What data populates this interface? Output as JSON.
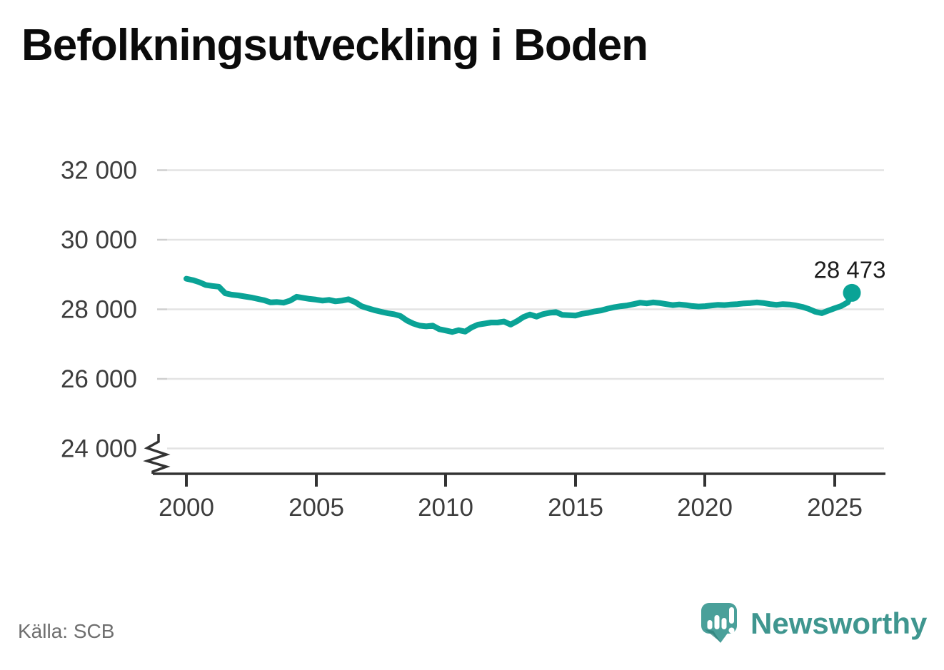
{
  "title": "Befolkningsutveckling i Boden",
  "source": "Källa: SCB",
  "branding": {
    "name": "Newsworthy"
  },
  "colors": {
    "line": "#0aa396",
    "grid": "#e3e3e3",
    "grid_tick": "#cfcfcf",
    "axis": "#333333",
    "tick_text": "#3d3d3d",
    "title_text": "#0b0b0b",
    "source_text": "#6e6e6e",
    "logo_badge": "#4aa09a",
    "logo_badge_shadow": "#2f817b",
    "logo_text": "#3f968f"
  },
  "chart_data": {
    "type": "line",
    "title": "Befolkningsutveckling i Boden",
    "xlabel": "",
    "ylabel": "",
    "grid": true,
    "legend": false,
    "x_axis": {
      "ticks": [
        2000,
        2005,
        2010,
        2015,
        2020,
        2025
      ],
      "tick_labels": [
        "2000",
        "2005",
        "2010",
        "2015",
        "2020",
        "2025"
      ],
      "range": [
        2000,
        2025.75
      ]
    },
    "y_axis": {
      "ticks": [
        24000,
        26000,
        28000,
        30000,
        32000
      ],
      "tick_labels": [
        "24 000",
        "26 000",
        "28 000",
        "30 000",
        "32 000"
      ],
      "range_displayed": [
        23270,
        32000
      ],
      "axis_break_below": 24000
    },
    "end_annotation": {
      "label": "28 473",
      "value": 28473,
      "x": 2025.66
    },
    "series": [
      {
        "points": [
          [
            2000.0,
            28880
          ],
          [
            2000.25,
            28840
          ],
          [
            2000.5,
            28780
          ],
          [
            2000.75,
            28700
          ],
          [
            2001.0,
            28670
          ],
          [
            2001.25,
            28650
          ],
          [
            2001.5,
            28460
          ],
          [
            2001.75,
            28420
          ],
          [
            2002.0,
            28400
          ],
          [
            2002.25,
            28370
          ],
          [
            2002.5,
            28340
          ],
          [
            2002.75,
            28300
          ],
          [
            2003.0,
            28260
          ],
          [
            2003.25,
            28200
          ],
          [
            2003.5,
            28210
          ],
          [
            2003.75,
            28190
          ],
          [
            2004.0,
            28250
          ],
          [
            2004.25,
            28360
          ],
          [
            2004.5,
            28330
          ],
          [
            2004.75,
            28300
          ],
          [
            2005.0,
            28280
          ],
          [
            2005.25,
            28250
          ],
          [
            2005.5,
            28270
          ],
          [
            2005.75,
            28230
          ],
          [
            2006.0,
            28250
          ],
          [
            2006.25,
            28290
          ],
          [
            2006.5,
            28210
          ],
          [
            2006.75,
            28090
          ],
          [
            2007.0,
            28030
          ],
          [
            2007.25,
            27975
          ],
          [
            2007.5,
            27930
          ],
          [
            2007.75,
            27890
          ],
          [
            2008.0,
            27860
          ],
          [
            2008.25,
            27810
          ],
          [
            2008.5,
            27680
          ],
          [
            2008.75,
            27590
          ],
          [
            2009.0,
            27530
          ],
          [
            2009.25,
            27510
          ],
          [
            2009.5,
            27530
          ],
          [
            2009.75,
            27430
          ],
          [
            2010.0,
            27390
          ],
          [
            2010.25,
            27350
          ],
          [
            2010.5,
            27400
          ],
          [
            2010.75,
            27360
          ],
          [
            2011.0,
            27480
          ],
          [
            2011.25,
            27560
          ],
          [
            2011.5,
            27590
          ],
          [
            2011.75,
            27620
          ],
          [
            2012.0,
            27620
          ],
          [
            2012.25,
            27650
          ],
          [
            2012.5,
            27560
          ],
          [
            2012.75,
            27660
          ],
          [
            2013.0,
            27780
          ],
          [
            2013.25,
            27850
          ],
          [
            2013.5,
            27790
          ],
          [
            2013.75,
            27860
          ],
          [
            2014.0,
            27900
          ],
          [
            2014.25,
            27920
          ],
          [
            2014.5,
            27840
          ],
          [
            2014.75,
            27830
          ],
          [
            2015.0,
            27820
          ],
          [
            2015.25,
            27870
          ],
          [
            2015.5,
            27900
          ],
          [
            2015.75,
            27940
          ],
          [
            2016.0,
            27970
          ],
          [
            2016.25,
            28020
          ],
          [
            2016.5,
            28060
          ],
          [
            2016.75,
            28090
          ],
          [
            2017.0,
            28110
          ],
          [
            2017.25,
            28150
          ],
          [
            2017.5,
            28190
          ],
          [
            2017.75,
            28170
          ],
          [
            2018.0,
            28200
          ],
          [
            2018.25,
            28180
          ],
          [
            2018.5,
            28150
          ],
          [
            2018.75,
            28120
          ],
          [
            2019.0,
            28140
          ],
          [
            2019.25,
            28120
          ],
          [
            2019.5,
            28095
          ],
          [
            2019.75,
            28080
          ],
          [
            2020.0,
            28090
          ],
          [
            2020.25,
            28110
          ],
          [
            2020.5,
            28130
          ],
          [
            2020.75,
            28120
          ],
          [
            2021.0,
            28140
          ],
          [
            2021.25,
            28150
          ],
          [
            2021.5,
            28170
          ],
          [
            2021.75,
            28180
          ],
          [
            2022.0,
            28200
          ],
          [
            2022.25,
            28180
          ],
          [
            2022.5,
            28150
          ],
          [
            2022.75,
            28130
          ],
          [
            2023.0,
            28150
          ],
          [
            2023.25,
            28140
          ],
          [
            2023.5,
            28110
          ],
          [
            2023.75,
            28070
          ],
          [
            2024.0,
            28010
          ],
          [
            2024.25,
            27930
          ],
          [
            2024.5,
            27890
          ],
          [
            2024.75,
            27960
          ],
          [
            2025.0,
            28030
          ],
          [
            2025.25,
            28095
          ],
          [
            2025.5,
            28200
          ],
          [
            2025.66,
            28473
          ]
        ]
      }
    ]
  }
}
